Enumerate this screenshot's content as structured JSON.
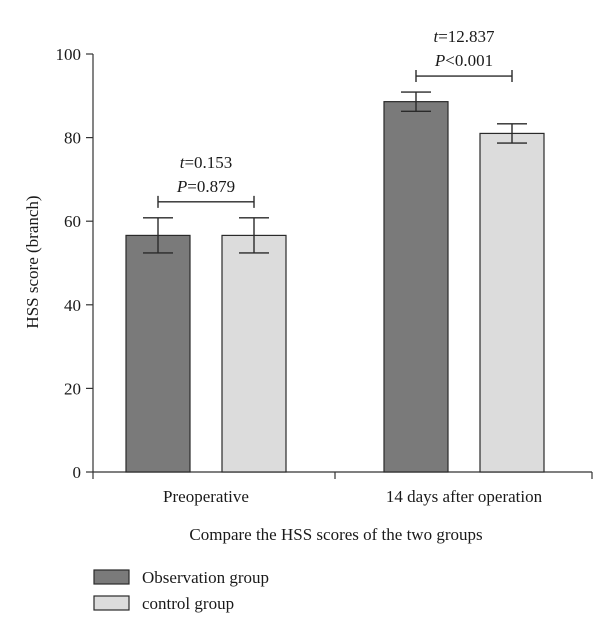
{
  "chart_data": {
    "type": "bar",
    "title": "",
    "xlabel": "Compare the HSS scores of the two groups",
    "ylabel": "HSS score (branch)",
    "ylim": [
      0,
      100
    ],
    "yticks": [
      0,
      20,
      40,
      60,
      80,
      100
    ],
    "categories": [
      "Preoperative",
      "14 days after operation"
    ],
    "series": [
      {
        "name": "Observation group",
        "color": "#7a7a7a",
        "values": [
          56.6,
          88.6
        ],
        "errors": [
          4.2,
          2.3
        ]
      },
      {
        "name": "control group",
        "color": "#dcdcdc",
        "values": [
          56.6,
          81.0
        ],
        "errors": [
          4.2,
          2.3
        ]
      }
    ],
    "annotations": [
      {
        "category": 0,
        "t_label": "t",
        "t_value": "=0.153",
        "p_label": "P",
        "p_value": "=0.879"
      },
      {
        "category": 1,
        "t_label": "t",
        "t_value": "=12.837",
        "p_label": "P",
        "p_value": "<0.001"
      }
    ],
    "grid": false,
    "legend_position": "bottom-left"
  }
}
